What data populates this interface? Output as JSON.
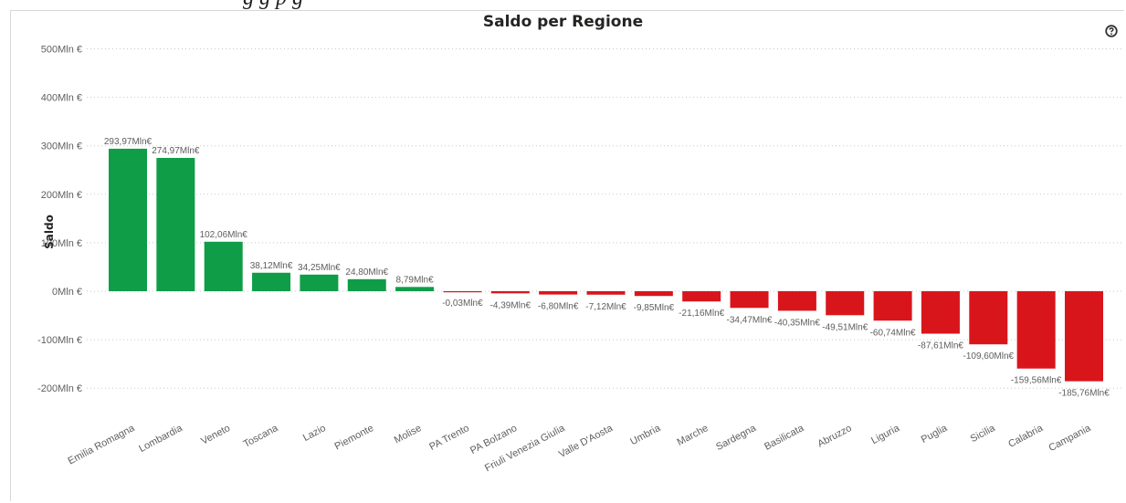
{
  "header": {
    "partial_text": "g        g   p   g"
  },
  "chart_data": {
    "type": "bar",
    "title": "Saldo per Regione",
    "ylabel": "Saldo",
    "xlabel": "",
    "ylim": [
      -200,
      500
    ],
    "y_ticks": [
      {
        "value": 500,
        "label": "500Mln €"
      },
      {
        "value": 400,
        "label": "400Mln €"
      },
      {
        "value": 300,
        "label": "300Mln €"
      },
      {
        "value": 200,
        "label": "200Mln €"
      },
      {
        "value": 100,
        "label": "100Mln €"
      },
      {
        "value": 0,
        "label": "0Mln €"
      },
      {
        "value": -100,
        "label": "-100Mln €"
      },
      {
        "value": -200,
        "label": "-200Mln €"
      }
    ],
    "grid": true,
    "colors": {
      "positive": "#0f9d48",
      "negative": "#d9151c"
    },
    "categories": [
      "Emilia Romagna",
      "Lombardia",
      "Veneto",
      "Toscana",
      "Lazio",
      "Piemonte",
      "Molise",
      "PA Trento",
      "PA Bolzano",
      "Friuli Venezia Giulia",
      "Valle D'Aosta",
      "Umbria",
      "Marche",
      "Sardegna",
      "Basilicata",
      "Abruzzo",
      "Liguria",
      "Puglia",
      "Sicilia",
      "Calabria",
      "Campania"
    ],
    "values": [
      293.97,
      274.97,
      102.06,
      38.12,
      34.25,
      24.8,
      8.79,
      -0.03,
      -4.39,
      -6.8,
      -7.12,
      -9.85,
      -21.16,
      -34.47,
      -40.35,
      -49.51,
      -60.74,
      -87.61,
      -109.6,
      -159.56,
      -185.76
    ],
    "data_labels": [
      "293,97Mln€",
      "274,97Mln€",
      "102,06Mln€",
      "38,12Mln€",
      "34,25Mln€",
      "24,80Mln€",
      "8,79Mln€",
      "-0,03Mln€",
      "-4,39Mln€",
      "-6,80Mln€",
      "-7,12Mln€",
      "-9,85Mln€",
      "-21,16Mln€",
      "-34,47Mln€",
      "-40,35Mln€",
      "-49,51Mln€",
      "-60,74Mln€",
      "-87,61Mln€",
      "-109,60Mln€",
      "-159,56Mln€",
      "-185,76Mln€"
    ]
  },
  "icons": {
    "help": "help-circle-icon"
  }
}
